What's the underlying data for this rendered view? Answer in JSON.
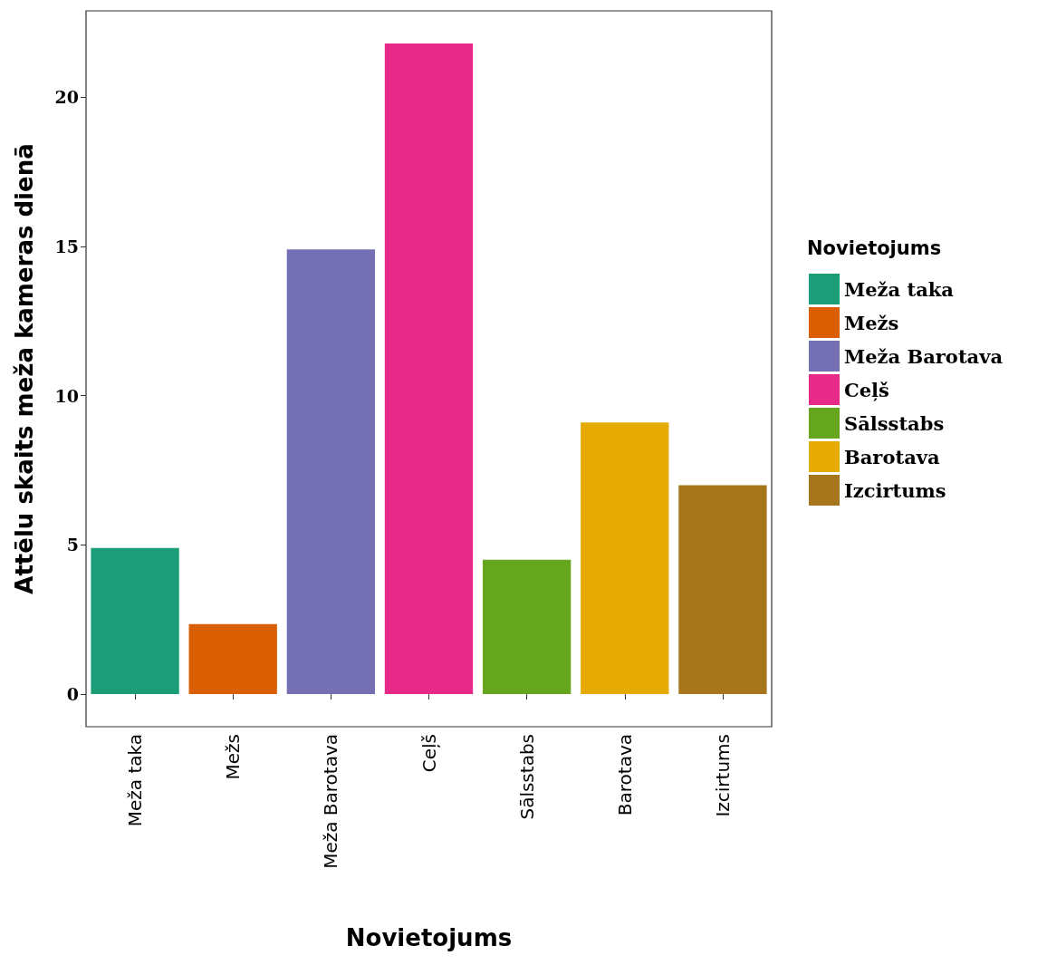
{
  "chart_data": {
    "type": "bar",
    "xlabel": "Novietojums",
    "ylabel": "Attēlu skaits meža kameras dienā",
    "legend_title": "Novietojums",
    "categories": [
      "Meža taka",
      "Mežs",
      "Meža Barotava",
      "Ceļš",
      "Sālsstabs",
      "Barotava",
      "Izcirtums"
    ],
    "series": [
      {
        "name": "Meža taka",
        "color": "#1b9e77",
        "values": [
          4.9,
          null,
          null,
          null,
          null,
          null,
          null
        ]
      },
      {
        "name": "Mežs",
        "color": "#d95f02",
        "values": [
          null,
          2.35,
          null,
          null,
          null,
          null,
          null
        ]
      },
      {
        "name": "Meža Barotava",
        "color": "#7570b3",
        "values": [
          null,
          null,
          14.9,
          null,
          null,
          null,
          null
        ]
      },
      {
        "name": "Ceļš",
        "color": "#e7298a",
        "values": [
          null,
          null,
          null,
          21.8,
          null,
          null,
          null
        ]
      },
      {
        "name": "Sālsstabs",
        "color": "#66a61e",
        "values": [
          null,
          null,
          null,
          null,
          4.5,
          null,
          null
        ]
      },
      {
        "name": "Barotava",
        "color": "#e6ab02",
        "values": [
          null,
          null,
          null,
          null,
          null,
          9.1,
          null
        ]
      },
      {
        "name": "Izcirtums",
        "color": "#a6761d",
        "values": [
          null,
          null,
          null,
          null,
          null,
          null,
          7.0
        ]
      }
    ],
    "ylim": [
      -1.09,
      22.89
    ],
    "yticks": [
      0,
      5,
      10,
      15,
      20
    ],
    "grid": false,
    "legend": "right"
  }
}
